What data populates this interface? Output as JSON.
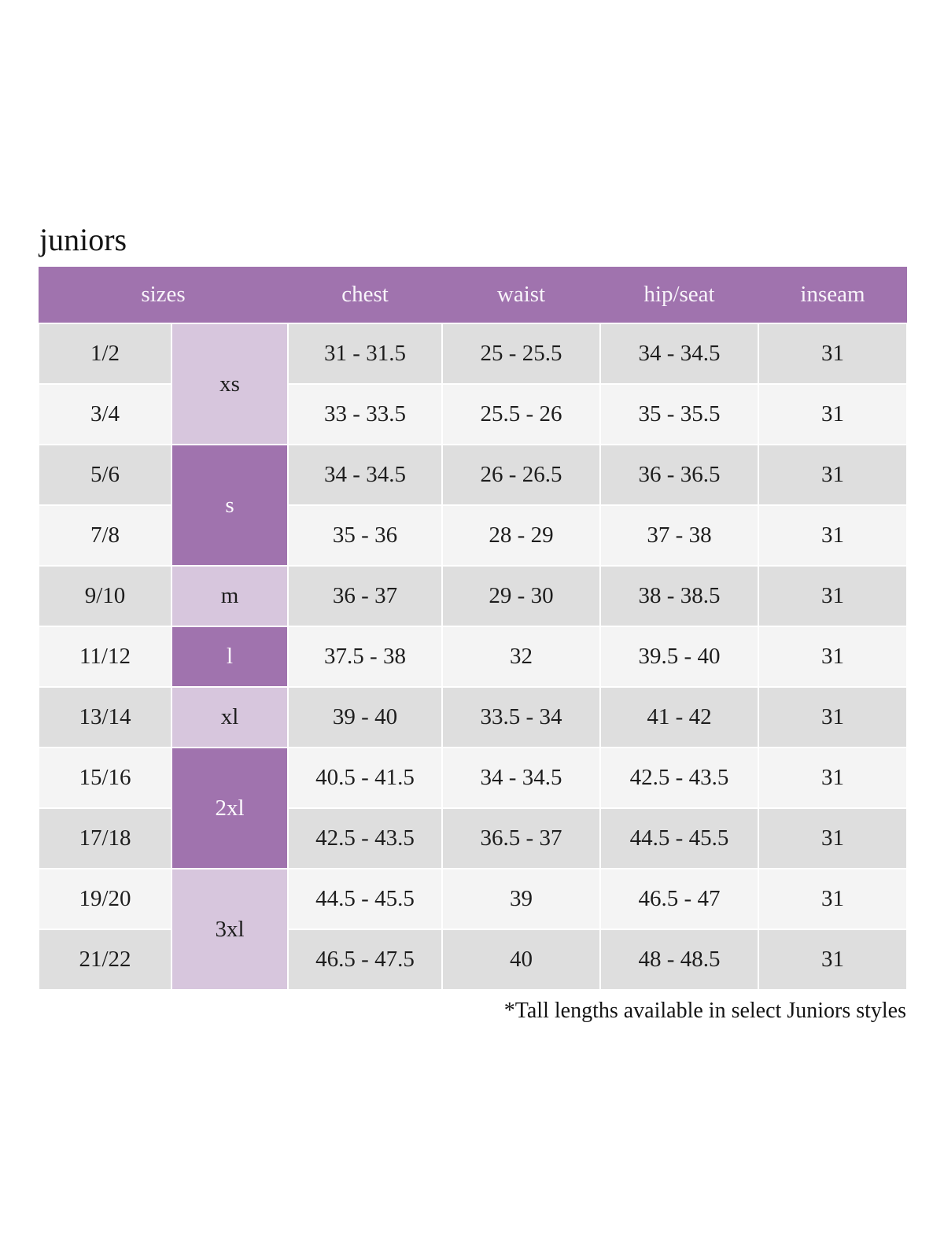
{
  "title": "juniors",
  "footnote": "*Tall lengths available in select Juniors styles",
  "colors": {
    "header_bg": "#a073ae",
    "header_text": "#f8f4fa",
    "size_letter_dark_bg": "#a073ae",
    "size_letter_light_bg": "#d7c6dd",
    "row_shaded_bg": "#dedede",
    "row_plain_bg": "#f4f4f4",
    "body_text": "#1d1d1d",
    "page_bg": "#ffffff"
  },
  "chart_data": {
    "type": "table",
    "title": "juniors",
    "note": "*Tall lengths available in select Juniors styles",
    "column_headers": [
      {
        "label": "sizes",
        "span": 2
      },
      {
        "label": "chest",
        "span": 1
      },
      {
        "label": "waist",
        "span": 1
      },
      {
        "label": "hip/seat",
        "span": 1
      },
      {
        "label": "inseam",
        "span": 1
      }
    ],
    "size_letter_groups": [
      {
        "label": "xs",
        "span": 2,
        "tone": "light"
      },
      {
        "label": "s",
        "span": 2,
        "tone": "dark"
      },
      {
        "label": "m",
        "span": 1,
        "tone": "light"
      },
      {
        "label": "l",
        "span": 1,
        "tone": "dark"
      },
      {
        "label": "xl",
        "span": 1,
        "tone": "light"
      },
      {
        "label": "2xl",
        "span": 2,
        "tone": "dark"
      },
      {
        "label": "3xl",
        "span": 2,
        "tone": "light"
      }
    ],
    "rows": [
      [
        "1/2",
        "31 - 31.5",
        "25 - 25.5",
        "34 - 34.5",
        "31"
      ],
      [
        "3/4",
        "33 - 33.5",
        "25.5 - 26",
        "35 - 35.5",
        "31"
      ],
      [
        "5/6",
        "34 - 34.5",
        "26 - 26.5",
        "36 - 36.5",
        "31"
      ],
      [
        "7/8",
        "35 - 36",
        "28 - 29",
        "37 - 38",
        "31"
      ],
      [
        "9/10",
        "36 - 37",
        "29 - 30",
        "38 - 38.5",
        "31"
      ],
      [
        "11/12",
        "37.5 - 38",
        "32",
        "39.5 - 40",
        "31"
      ],
      [
        "13/14",
        "39 - 40",
        "33.5 - 34",
        "41 - 42",
        "31"
      ],
      [
        "15/16",
        "40.5 - 41.5",
        "34 - 34.5",
        "42.5 - 43.5",
        "31"
      ],
      [
        "17/18",
        "42.5 - 43.5",
        "36.5 - 37",
        "44.5 - 45.5",
        "31"
      ],
      [
        "19/20",
        "44.5 - 45.5",
        "39",
        "46.5 - 47",
        "31"
      ],
      [
        "21/22",
        "46.5 - 47.5",
        "40",
        "48 - 48.5",
        "31"
      ]
    ]
  }
}
